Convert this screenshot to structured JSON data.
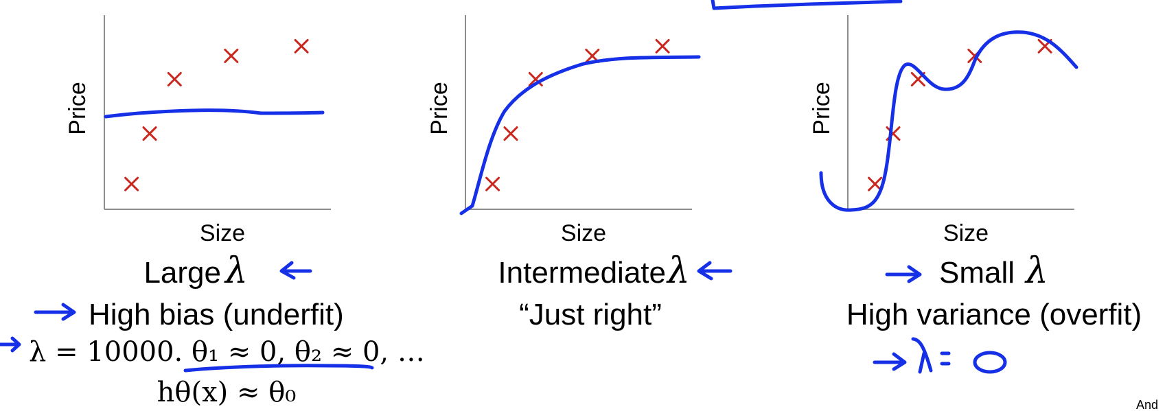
{
  "chart_data": [
    {
      "type": "scatter",
      "xlabel": "Size",
      "ylabel": "Price",
      "points": [
        [
          0.12,
          0.13
        ],
        [
          0.2,
          0.39
        ],
        [
          0.31,
          0.67
        ],
        [
          0.56,
          0.79
        ],
        [
          0.87,
          0.84
        ]
      ],
      "fit": "flat",
      "caption": "Large",
      "subcaption": "High bias (underfit)"
    },
    {
      "type": "scatter",
      "xlabel": "Size",
      "ylabel": "Price",
      "points": [
        [
          0.12,
          0.13
        ],
        [
          0.2,
          0.39
        ],
        [
          0.31,
          0.67
        ],
        [
          0.56,
          0.79
        ],
        [
          0.87,
          0.84
        ]
      ],
      "fit": "smooth",
      "caption": "Intermediate",
      "subcaption": "“Just right”"
    },
    {
      "type": "scatter",
      "xlabel": "Size",
      "ylabel": "Price",
      "points": [
        [
          0.12,
          0.13
        ],
        [
          0.2,
          0.39
        ],
        [
          0.31,
          0.67
        ],
        [
          0.56,
          0.79
        ],
        [
          0.87,
          0.84
        ]
      ],
      "fit": "wiggly",
      "caption": "Small",
      "subcaption": "High variance (overfit)"
    }
  ],
  "labels": {
    "lambda": "λ",
    "formula1": "λ = 10000.  θ₁ ≈ 0, θ₂ ≈ 0, …",
    "formula2": "hθ(x) ≈ θ₀",
    "handwritten": "λ = 0",
    "footer": "And"
  },
  "colors": {
    "ink": "#1530e6",
    "points": "#c8281e",
    "axis": "#8c8c8c"
  }
}
